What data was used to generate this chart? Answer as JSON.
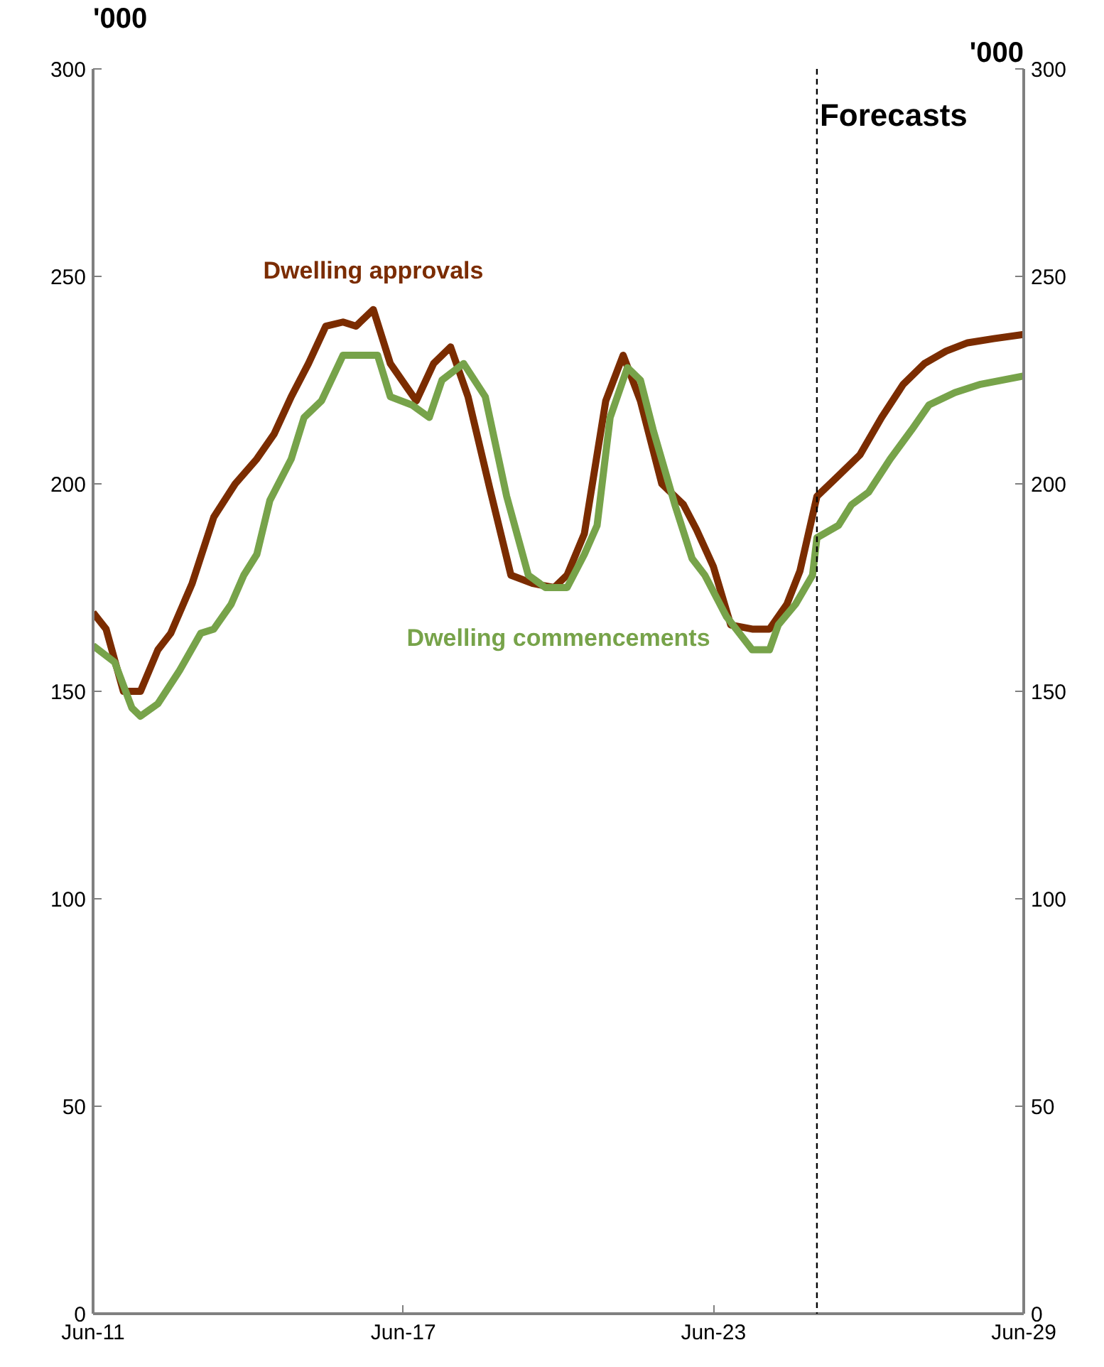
{
  "chart_data": {
    "type": "line",
    "ylabel": "'000",
    "y2label": "'000",
    "xlim": [
      "2011-06",
      "2029-06"
    ],
    "xticks": [
      {
        "value": "2011-06",
        "label": "Jun-11"
      },
      {
        "value": "2017-06",
        "label": "Jun-17"
      },
      {
        "value": "2023-06",
        "label": "Jun-23"
      },
      {
        "value": "2029-06",
        "label": "Jun-29"
      }
    ],
    "ylim": [
      0,
      300
    ],
    "yticks": [
      0,
      50,
      100,
      150,
      200,
      250,
      300
    ],
    "y2lim": [
      0,
      300
    ],
    "y2ticks": [
      0,
      50,
      100,
      150,
      200,
      250,
      300
    ],
    "grid": false,
    "legend": false,
    "marker": "none",
    "line_style": "solid",
    "ref_lines": [
      {
        "axis": "x",
        "value": "2025-06",
        "label": "Forecasts",
        "color": "#000000",
        "line_style": "dashed"
      }
    ],
    "series": [
      {
        "name": "Dwelling approvals",
        "color": "#7b2c00",
        "x": [
          "2011-06",
          "2011-09",
          "2012-01",
          "2012-05",
          "2012-09",
          "2012-12",
          "2013-05",
          "2013-10",
          "2014-03",
          "2014-08",
          "2014-12",
          "2015-04",
          "2015-08",
          "2015-12",
          "2016-04",
          "2016-07",
          "2016-11",
          "2017-03",
          "2017-07",
          "2017-09",
          "2018-01",
          "2018-05",
          "2018-09",
          "2019-02",
          "2019-07",
          "2019-12",
          "2020-05",
          "2020-08",
          "2020-12",
          "2021-05",
          "2021-09",
          "2022-01",
          "2022-06",
          "2022-11",
          "2023-02",
          "2023-06",
          "2023-10",
          "2024-03",
          "2024-07",
          "2024-11",
          "2025-02",
          "2025-06",
          "2025-11",
          "2026-04",
          "2026-09",
          "2027-02",
          "2027-07",
          "2027-12",
          "2028-05",
          "2028-11",
          "2029-06"
        ],
        "values": [
          169,
          165,
          150,
          150,
          160,
          164,
          176,
          192,
          200,
          206,
          212,
          221,
          229,
          238,
          239,
          238,
          242,
          229,
          223,
          220,
          229,
          233,
          221,
          199,
          178,
          176,
          175,
          178,
          188,
          220,
          231,
          220,
          200,
          195,
          189,
          180,
          166,
          165,
          165,
          171,
          179,
          197,
          202,
          207,
          216,
          224,
          229,
          232,
          234,
          235,
          236
        ]
      },
      {
        "name": "Dwelling commencements",
        "color": "#77a34a",
        "x": [
          "2011-06",
          "2011-11",
          "2012-03",
          "2012-05",
          "2012-09",
          "2013-02",
          "2013-07",
          "2013-10",
          "2014-02",
          "2014-05",
          "2014-08",
          "2014-11",
          "2015-04",
          "2015-07",
          "2015-11",
          "2016-04",
          "2016-09",
          "2016-12",
          "2017-03",
          "2017-08",
          "2017-12",
          "2018-03",
          "2018-08",
          "2019-01",
          "2019-06",
          "2019-11",
          "2020-03",
          "2020-06",
          "2020-08",
          "2020-12",
          "2021-03",
          "2021-06",
          "2021-10",
          "2022-01",
          "2022-04",
          "2022-09",
          "2023-01",
          "2023-04",
          "2023-09",
          "2024-03",
          "2024-07",
          "2024-09",
          "2025-01",
          "2025-05",
          "2025-06",
          "2025-11",
          "2026-02",
          "2026-06",
          "2026-11",
          "2027-04",
          "2027-08",
          "2028-02",
          "2028-08",
          "2029-06"
        ],
        "values": [
          161,
          157,
          146,
          144,
          147,
          155,
          164,
          165,
          171,
          178,
          183,
          196,
          206,
          216,
          220,
          231,
          231,
          231,
          221,
          219,
          216,
          225,
          229,
          221,
          197,
          178,
          175,
          175,
          175,
          183,
          190,
          216,
          228,
          225,
          213,
          195,
          182,
          178,
          168,
          160,
          160,
          166,
          171,
          178,
          187,
          190,
          195,
          198,
          206,
          213,
          219,
          222,
          224,
          226
        ]
      }
    ]
  }
}
